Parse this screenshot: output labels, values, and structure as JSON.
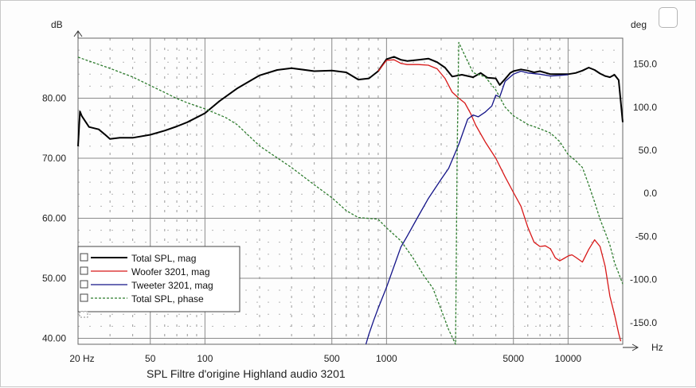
{
  "chart_data": {
    "type": "line",
    "title": "SPL Filtre d'origine Highland audio 3201",
    "x_axis": {
      "unit": "Hz",
      "scale": "log",
      "range": [
        20,
        20000
      ],
      "tick_values": [
        20,
        50,
        100,
        500,
        1000,
        5000,
        10000
      ],
      "tick_labels": [
        "20 Hz",
        "50",
        "100",
        "500",
        "1000",
        "5000",
        "10000"
      ]
    },
    "y_left": {
      "unit": "dB",
      "range": [
        39,
        90
      ],
      "tick_values": [
        40,
        50,
        60,
        70,
        80
      ],
      "tick_labels": [
        "40.00",
        "50.00",
        "60.00",
        "70.00",
        "80.00"
      ]
    },
    "y_right": {
      "unit": "deg",
      "range": [
        -175,
        180
      ],
      "tick_values": [
        -150,
        -100,
        -50,
        0,
        50,
        100,
        150
      ],
      "tick_labels": [
        "-150.0",
        "-100.0",
        "-50.0",
        "0.0",
        "50.0",
        "100.0",
        "150.0"
      ]
    },
    "grid": true,
    "legend_position": "bottom-left",
    "series": [
      {
        "name": "Total SPL, mag",
        "axis": "left",
        "color": "#000000",
        "points": [
          [
            20,
            72
          ],
          [
            20.5,
            77.8
          ],
          [
            21,
            77
          ],
          [
            23,
            75.2
          ],
          [
            26,
            74.8
          ],
          [
            28,
            74
          ],
          [
            30,
            73.2
          ],
          [
            34,
            73.4
          ],
          [
            40,
            73.4
          ],
          [
            50,
            73.9
          ],
          [
            60,
            74.6
          ],
          [
            70,
            75.3
          ],
          [
            80,
            76
          ],
          [
            100,
            77.5
          ],
          [
            120,
            79.5
          ],
          [
            150,
            81.6
          ],
          [
            200,
            83.8
          ],
          [
            250,
            84.7
          ],
          [
            300,
            85
          ],
          [
            400,
            84.5
          ],
          [
            500,
            84.6
          ],
          [
            600,
            84.3
          ],
          [
            700,
            83.1
          ],
          [
            800,
            83.3
          ],
          [
            900,
            84.5
          ],
          [
            1000,
            86.5
          ],
          [
            1100,
            86.9
          ],
          [
            1200,
            86.4
          ],
          [
            1300,
            86.2
          ],
          [
            1500,
            86.4
          ],
          [
            1700,
            86.6
          ],
          [
            1900,
            86
          ],
          [
            2100,
            85.1
          ],
          [
            2300,
            83.6
          ],
          [
            2600,
            83.9
          ],
          [
            3000,
            83.5
          ],
          [
            3300,
            84.2
          ],
          [
            3600,
            83.4
          ],
          [
            4000,
            83.3
          ],
          [
            4200,
            82.2
          ],
          [
            4500,
            83.2
          ],
          [
            4800,
            84.2
          ],
          [
            5000,
            84.5
          ],
          [
            5500,
            84.8
          ],
          [
            6000,
            84.6
          ],
          [
            6500,
            84.3
          ],
          [
            7000,
            84.5
          ],
          [
            8000,
            84
          ],
          [
            9000,
            84
          ],
          [
            10000,
            84
          ],
          [
            11000,
            84.2
          ],
          [
            12000,
            84.6
          ],
          [
            13000,
            85.1
          ],
          [
            14000,
            84.7
          ],
          [
            15000,
            84.1
          ],
          [
            16000,
            83.7
          ],
          [
            17000,
            83.5
          ],
          [
            18000,
            83.9
          ],
          [
            19000,
            83
          ],
          [
            20000,
            76
          ]
        ]
      },
      {
        "name": "Woofer 3201, mag",
        "axis": "left",
        "color": "#d81818",
        "points": [
          [
            900,
            84.5
          ],
          [
            1000,
            86.3
          ],
          [
            1100,
            86.4
          ],
          [
            1200,
            85.8
          ],
          [
            1300,
            85.6
          ],
          [
            1500,
            85.6
          ],
          [
            1700,
            85.5
          ],
          [
            1900,
            84.9
          ],
          [
            2100,
            83.3
          ],
          [
            2300,
            81
          ],
          [
            2500,
            80
          ],
          [
            2700,
            79.2
          ],
          [
            2900,
            77.5
          ],
          [
            3100,
            75.5
          ],
          [
            3500,
            72.7
          ],
          [
            4000,
            70
          ],
          [
            4500,
            66.9
          ],
          [
            5000,
            64.3
          ],
          [
            5500,
            62
          ],
          [
            6000,
            58.5
          ],
          [
            6500,
            56
          ],
          [
            7000,
            55.3
          ],
          [
            7500,
            55.4
          ],
          [
            8000,
            54.9
          ],
          [
            8500,
            53.4
          ],
          [
            9000,
            52.9
          ],
          [
            9500,
            53.3
          ],
          [
            10000,
            53.7
          ],
          [
            10500,
            53.9
          ],
          [
            11000,
            53.5
          ],
          [
            12000,
            52.7
          ],
          [
            13000,
            54.8
          ],
          [
            14000,
            56.4
          ],
          [
            15000,
            55.3
          ],
          [
            16000,
            52
          ],
          [
            17000,
            47
          ],
          [
            18000,
            44
          ],
          [
            19000,
            40.8
          ],
          [
            19500,
            39.5
          ]
        ]
      },
      {
        "name": "Tweeter 3201, mag",
        "axis": "left",
        "color": "#141488",
        "points": [
          [
            770,
            39
          ],
          [
            800,
            40.7
          ],
          [
            850,
            43
          ],
          [
            900,
            45
          ],
          [
            1000,
            48.5
          ],
          [
            1100,
            52
          ],
          [
            1200,
            55.2
          ],
          [
            1300,
            57
          ],
          [
            1500,
            60.4
          ],
          [
            1700,
            63.3
          ],
          [
            2000,
            66.5
          ],
          [
            2200,
            68.3
          ],
          [
            2500,
            72.3
          ],
          [
            2800,
            76.5
          ],
          [
            3000,
            77.2
          ],
          [
            3200,
            76.9
          ],
          [
            3500,
            77.7
          ],
          [
            3800,
            78.7
          ],
          [
            4000,
            80.5
          ],
          [
            4200,
            80.2
          ],
          [
            4500,
            82.8
          ],
          [
            5000,
            84
          ],
          [
            5500,
            84.5
          ],
          [
            6000,
            84.2
          ],
          [
            7000,
            84
          ],
          [
            8000,
            83.7
          ],
          [
            9000,
            83.8
          ],
          [
            10000,
            83.9
          ]
        ]
      },
      {
        "name": "Total SPL, phase",
        "axis": "right",
        "color": "#2f7d2f",
        "dash": true,
        "points": [
          [
            20,
            158
          ],
          [
            30,
            145
          ],
          [
            40,
            135
          ],
          [
            50,
            125
          ],
          [
            60,
            117
          ],
          [
            70,
            110
          ],
          [
            80,
            105
          ],
          [
            100,
            98
          ],
          [
            130,
            88
          ],
          [
            150,
            80
          ],
          [
            200,
            55
          ],
          [
            300,
            30
          ],
          [
            400,
            10
          ],
          [
            500,
            -5
          ],
          [
            600,
            -20
          ],
          [
            700,
            -28
          ],
          [
            900,
            -30
          ],
          [
            1000,
            -40
          ],
          [
            1200,
            -55
          ],
          [
            1400,
            -75
          ],
          [
            1600,
            -95
          ],
          [
            1800,
            -110
          ],
          [
            2000,
            -135
          ],
          [
            2200,
            -158
          ],
          [
            2400,
            -175
          ],
          [
            2450,
            50
          ],
          [
            2500,
            175
          ],
          [
            2700,
            160
          ],
          [
            3000,
            140
          ],
          [
            3500,
            135
          ],
          [
            4000,
            120
          ],
          [
            4500,
            100
          ],
          [
            5000,
            90
          ],
          [
            6000,
            80
          ],
          [
            7000,
            75
          ],
          [
            8000,
            70
          ],
          [
            9000,
            60
          ],
          [
            10000,
            45
          ],
          [
            11000,
            38
          ],
          [
            12000,
            30
          ],
          [
            13000,
            10
          ],
          [
            14000,
            -10
          ],
          [
            15000,
            -30
          ],
          [
            16000,
            -45
          ],
          [
            17000,
            -60
          ],
          [
            18000,
            -80
          ],
          [
            20000,
            -105
          ]
        ]
      }
    ]
  }
}
